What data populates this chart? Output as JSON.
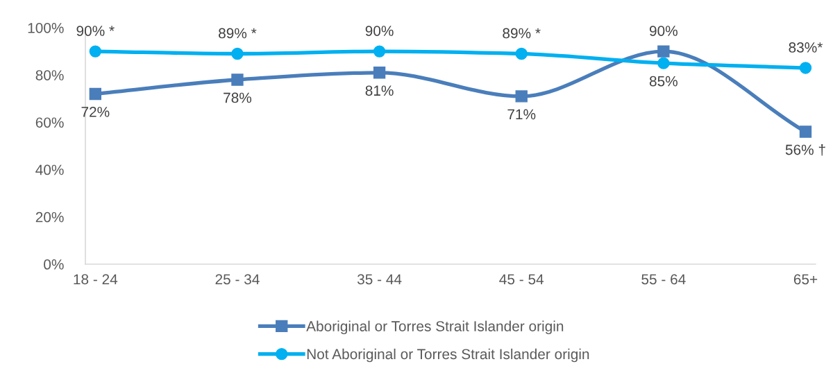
{
  "chart_data": {
    "type": "line",
    "categories": [
      "18 - 24",
      "25 - 34",
      "35 - 44",
      "45 - 54",
      "55 - 64",
      "65+"
    ],
    "series": [
      {
        "name": "Aboriginal or Torres Strait Islander origin",
        "color": "#4a7ebb",
        "marker": "square",
        "values": [
          72,
          78,
          81,
          71,
          90,
          56
        ],
        "value_labels": [
          "72%",
          "78%",
          "81%",
          "71%",
          "90%",
          "56% †"
        ]
      },
      {
        "name": "Not Aboriginal or Torres Strait Islander origin",
        "color": "#00b0f0",
        "marker": "circle",
        "values": [
          90,
          89,
          90,
          89,
          85,
          83
        ],
        "value_labels": [
          "90% *",
          "89% *",
          "90%",
          "89% *",
          "85%",
          "83%*"
        ]
      }
    ],
    "ylim": [
      0,
      100
    ],
    "yticks": [
      {
        "value": 0,
        "label": "0%"
      },
      {
        "value": 20,
        "label": "20%"
      },
      {
        "value": 40,
        "label": "40%"
      },
      {
        "value": 60,
        "label": "60%"
      },
      {
        "value": 80,
        "label": "80%"
      },
      {
        "value": 100,
        "label": "100%"
      }
    ],
    "grid": false,
    "legend": "bottom",
    "line_style": "solid"
  }
}
